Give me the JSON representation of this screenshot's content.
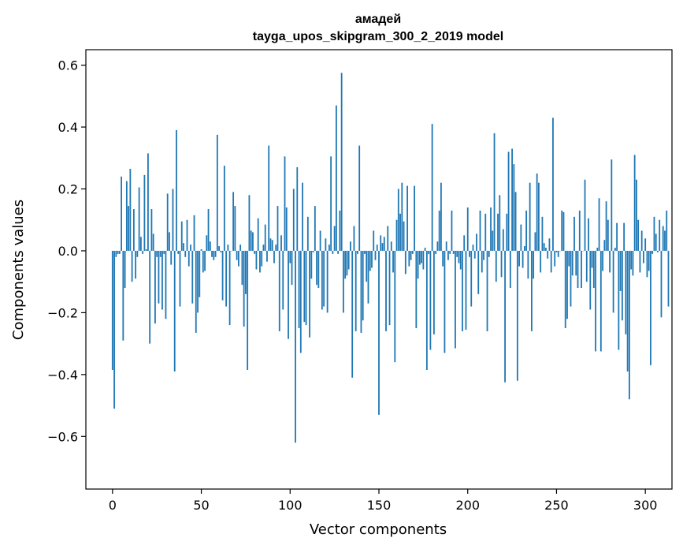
{
  "chart_data": {
    "type": "bar",
    "title": "амадей",
    "subtitle": "tayga_upos_skipgram_300_2_2019 model",
    "xlabel": "Vector components",
    "ylabel": "Components values",
    "xlim": [
      -15,
      315
    ],
    "ylim": [
      -0.77,
      0.65
    ],
    "xticks": [
      0,
      50,
      100,
      150,
      200,
      250,
      300
    ],
    "xtick_labels": [
      "0",
      "50",
      "100",
      "150",
      "200",
      "250",
      "300"
    ],
    "yticks": [
      -0.6,
      -0.4,
      -0.2,
      0.0,
      0.2,
      0.4,
      0.6
    ],
    "ytick_labels": [
      "−0.6",
      "−0.4",
      "−0.2",
      "0.0",
      "0.2",
      "0.4",
      "0.6"
    ],
    "color": "#1f77b4",
    "values": [
      -0.385,
      -0.51,
      -0.02,
      -0.01,
      -0.01,
      0.24,
      -0.29,
      -0.12,
      0.225,
      0.145,
      0.265,
      -0.1,
      0.135,
      -0.09,
      -0.02,
      0.205,
      0.045,
      -0.01,
      0.245,
      0.005,
      0.315,
      -0.3,
      0.135,
      0.055,
      -0.235,
      -0.02,
      -0.17,
      -0.02,
      -0.19,
      -0.01,
      -0.22,
      0.185,
      0.06,
      -0.045,
      0.2,
      -0.39,
      0.39,
      -0.01,
      -0.18,
      0.095,
      0.025,
      -0.02,
      0.1,
      -0.05,
      0.02,
      -0.17,
      0.115,
      -0.265,
      -0.2,
      -0.15,
      0.005,
      -0.07,
      -0.065,
      0.05,
      0.135,
      0.03,
      -0.02,
      -0.03,
      -0.02,
      0.375,
      0.015,
      -0.005,
      -0.16,
      0.275,
      -0.18,
      0.02,
      -0.24,
      0.0,
      0.19,
      0.145,
      -0.03,
      -0.05,
      0.02,
      -0.11,
      -0.245,
      -0.14,
      -0.385,
      0.18,
      0.065,
      0.06,
      -0.01,
      -0.06,
      0.105,
      -0.07,
      -0.05,
      0.02,
      0.085,
      -0.035,
      0.34,
      0.04,
      0.035,
      -0.04,
      0.02,
      0.145,
      -0.26,
      0.05,
      -0.19,
      0.305,
      0.14,
      -0.285,
      -0.04,
      -0.11,
      0.2,
      -0.62,
      0.27,
      -0.25,
      -0.33,
      0.22,
      -0.23,
      -0.24,
      0.11,
      -0.28,
      -0.09,
      -0.005,
      0.145,
      -0.11,
      -0.12,
      0.065,
      -0.19,
      -0.18,
      0.04,
      -0.2,
      0.02,
      0.305,
      -0.01,
      0.08,
      0.47,
      -0.01,
      0.13,
      0.575,
      -0.2,
      -0.09,
      -0.08,
      -0.06,
      0.03,
      -0.41,
      0.08,
      -0.26,
      -0.01,
      0.34,
      -0.265,
      -0.225,
      -0.01,
      -0.1,
      -0.17,
      -0.065,
      -0.055,
      0.065,
      -0.03,
      0.02,
      -0.53,
      0.05,
      0.025,
      0.045,
      -0.26,
      0.08,
      -0.24,
      0.03,
      -0.07,
      -0.36,
      0.1,
      0.2,
      0.12,
      0.22,
      0.095,
      -0.075,
      0.21,
      -0.05,
      -0.03,
      -0.01,
      0.21,
      -0.25,
      -0.09,
      -0.045,
      -0.04,
      -0.06,
      0.01,
      -0.385,
      -0.01,
      -0.32,
      0.41,
      -0.27,
      -0.01,
      0.03,
      0.13,
      0.22,
      -0.05,
      -0.33,
      0.03,
      -0.03,
      -0.01,
      0.13,
      -0.01,
      -0.315,
      -0.02,
      -0.04,
      -0.06,
      -0.26,
      0.05,
      -0.255,
      0.14,
      -0.02,
      -0.18,
      0.02,
      -0.025,
      0.055,
      -0.14,
      0.13,
      -0.07,
      -0.03,
      0.12,
      -0.26,
      -0.02,
      0.14,
      0.065,
      0.38,
      -0.1,
      0.12,
      0.18,
      -0.085,
      0.07,
      -0.425,
      0.12,
      0.32,
      -0.12,
      0.33,
      0.28,
      0.19,
      -0.42,
      -0.05,
      0.085,
      -0.055,
      0.015,
      0.13,
      -0.09,
      0.22,
      -0.26,
      -0.09,
      0.06,
      0.25,
      0.22,
      -0.07,
      0.11,
      0.025,
      0.01,
      -0.025,
      0.04,
      -0.07,
      0.43,
      -0.05,
      -0.005,
      -0.02,
      0.0,
      0.13,
      0.125,
      -0.25,
      -0.22,
      -0.05,
      -0.18,
      -0.08,
      0.11,
      -0.08,
      -0.12,
      0.13,
      -0.12,
      0.0,
      0.23,
      -0.1,
      0.105,
      -0.19,
      -0.055,
      -0.12,
      -0.325,
      0.01,
      0.17,
      -0.325,
      -0.065,
      0.035,
      0.16,
      0.1,
      -0.07,
      0.295,
      -0.2,
      0.01,
      0.09,
      -0.32,
      -0.13,
      -0.225,
      0.09,
      -0.27,
      -0.39,
      -0.48,
      -0.06,
      -0.08,
      0.31,
      0.23,
      0.1,
      -0.07,
      0.065,
      -0.04,
      0.04,
      -0.085,
      -0.065,
      -0.37,
      -0.01,
      0.11,
      0.055,
      -0.005,
      0.1,
      -0.215,
      0.08,
      0.065,
      0.13,
      -0.18
    ]
  }
}
